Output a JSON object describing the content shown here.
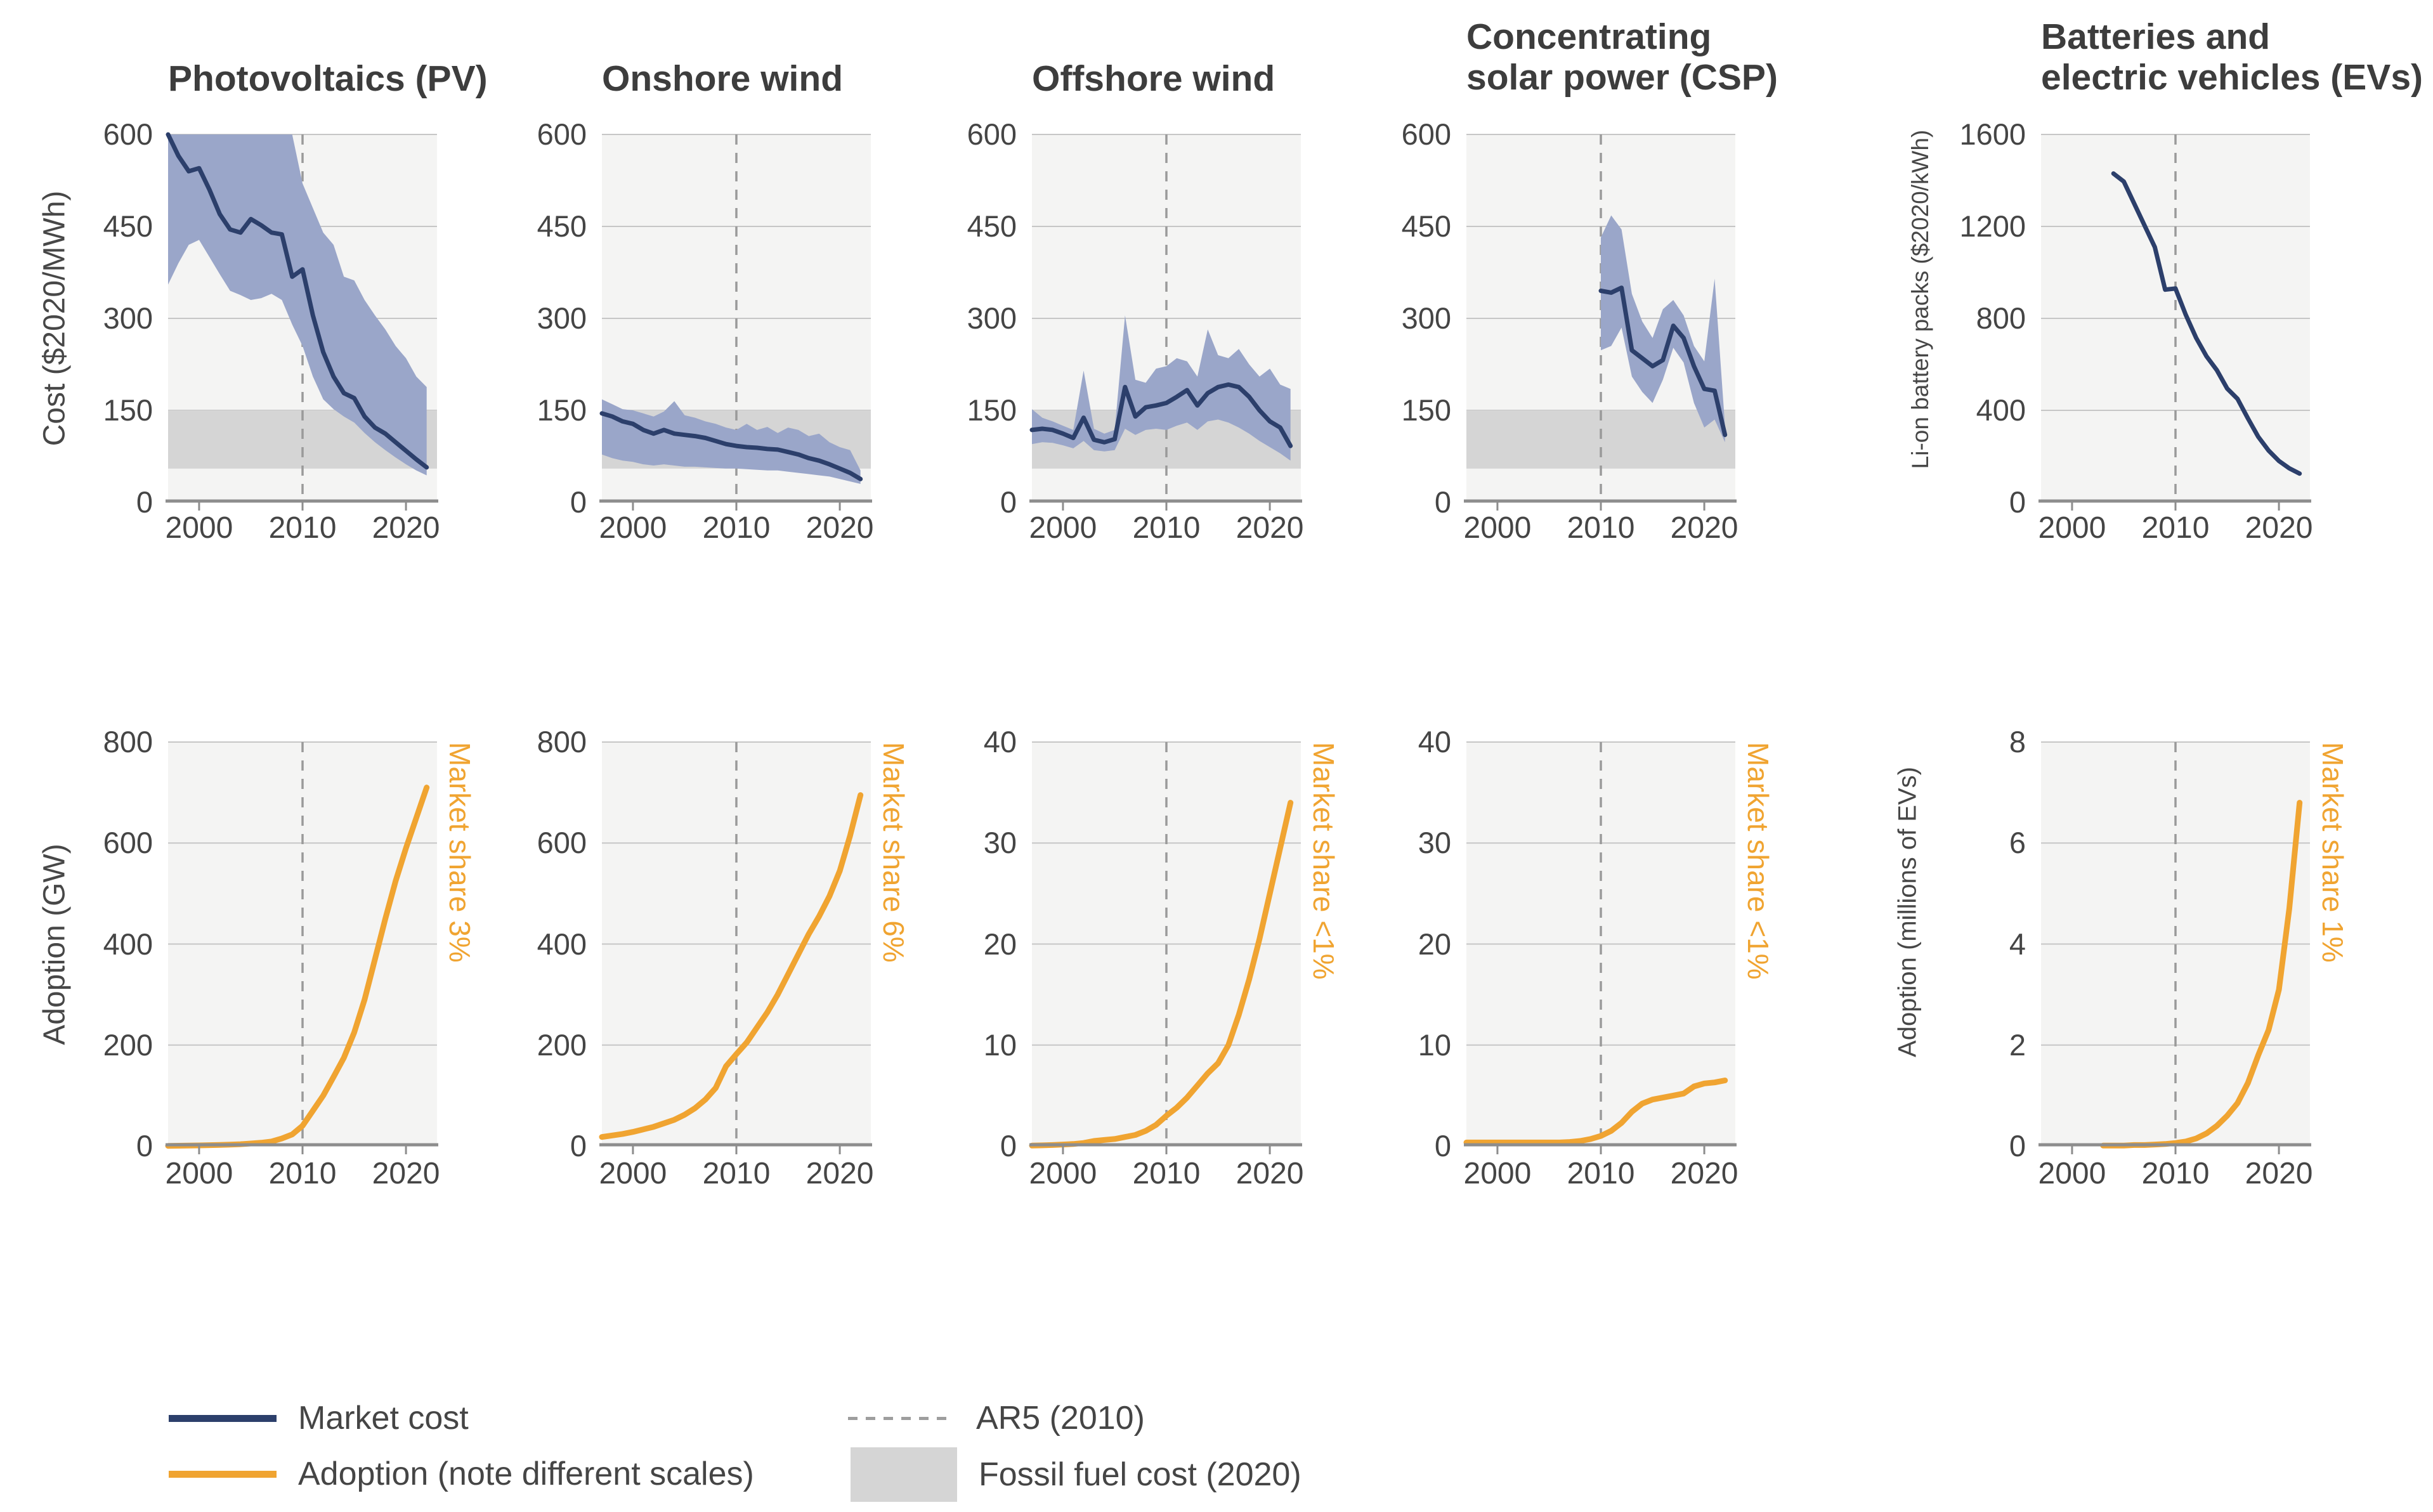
{
  "colors": {
    "line": "#2c3f6b",
    "orange": "#f0a431",
    "band": "#9aa6c9",
    "fossil_band": "#d5d5d5",
    "plot_bg": "#f4f4f3",
    "grid": "#c6c6c6",
    "dashed": "#9a9a9a",
    "axis": "#8d8d8d",
    "text": "#3d3d3d"
  },
  "axis_labels": {
    "cost": "Cost ($2020/MWh)",
    "battery": "Li-on battery packs ($2020/kWh)",
    "adoption_gw": "Adoption (GW)",
    "adoption_ev": "Adoption (millions of EVs)"
  },
  "legend": {
    "market_cost": "Market cost",
    "adoption": "Adoption (note different scales)",
    "ar5": "AR5 (2010)",
    "fossil": "Fossil fuel cost (2020)"
  },
  "x_ticks": [
    2000,
    2010,
    2020
  ],
  "x_range": [
    1997,
    2023
  ],
  "ar5_year": 2010,
  "chart_data": [
    {
      "id": "pv-cost",
      "type": "line",
      "row": "cost",
      "col": 0,
      "title": "Photovoltaics (PV)",
      "ylabel_key": "cost",
      "ylim": [
        0,
        600
      ],
      "yticks": [
        0,
        150,
        300,
        450,
        600
      ],
      "fossil_band": [
        55,
        150
      ],
      "series": [
        {
          "name": "Market cost",
          "start_year": 1997,
          "values": [
            600,
            565,
            540,
            545,
            510,
            470,
            445,
            440,
            462,
            452,
            440,
            437,
            368,
            380,
            305,
            245,
            205,
            178,
            170,
            140,
            122,
            112,
            98,
            84,
            70,
            57
          ]
        }
      ],
      "band": {
        "start_year": 1997,
        "upper": [
          600,
          600,
          600,
          600,
          600,
          600,
          600,
          600,
          600,
          600,
          600,
          600,
          600,
          520,
          480,
          440,
          420,
          368,
          362,
          330,
          305,
          282,
          255,
          235,
          205,
          188
        ],
        "lower": [
          355,
          390,
          420,
          428,
          400,
          372,
          345,
          338,
          330,
          333,
          340,
          330,
          290,
          255,
          205,
          168,
          152,
          140,
          130,
          113,
          98,
          85,
          73,
          62,
          52,
          44
        ]
      }
    },
    {
      "id": "onshore-cost",
      "type": "line",
      "row": "cost",
      "col": 1,
      "title": "Onshore wind",
      "ylabel_key": "cost",
      "ylim": [
        0,
        600
      ],
      "yticks": [
        0,
        150,
        300,
        450,
        600
      ],
      "fossil_band": [
        55,
        150
      ],
      "series": [
        {
          "name": "Market cost",
          "start_year": 1997,
          "values": [
            145,
            140,
            132,
            128,
            118,
            112,
            118,
            112,
            110,
            108,
            105,
            100,
            95,
            92,
            90,
            89,
            87,
            86,
            82,
            78,
            72,
            68,
            62,
            55,
            48,
            38
          ]
        }
      ],
      "band": {
        "start_year": 1997,
        "upper": [
          168,
          160,
          152,
          150,
          145,
          140,
          148,
          165,
          142,
          138,
          132,
          128,
          122,
          118,
          128,
          118,
          123,
          113,
          122,
          118,
          108,
          112,
          98,
          90,
          85,
          52
        ],
        "lower": [
          78,
          72,
          68,
          66,
          62,
          60,
          62,
          60,
          58,
          58,
          57,
          56,
          55,
          55,
          54,
          53,
          52,
          52,
          50,
          48,
          46,
          44,
          42,
          38,
          34,
          30
        ]
      }
    },
    {
      "id": "offshore-cost",
      "type": "line",
      "row": "cost",
      "col": 2,
      "title": "Offshore wind",
      "ylabel_key": "cost",
      "ylim": [
        0,
        600
      ],
      "yticks": [
        0,
        150,
        300,
        450,
        600
      ],
      "fossil_band": [
        55,
        150
      ],
      "series": [
        {
          "name": "Market cost",
          "start_year": 1997,
          "values": [
            118,
            120,
            118,
            112,
            105,
            138,
            102,
            98,
            103,
            188,
            140,
            155,
            158,
            162,
            172,
            183,
            158,
            178,
            188,
            192,
            188,
            172,
            150,
            132,
            122,
            92
          ]
        }
      ],
      "band": {
        "start_year": 1997,
        "upper": [
          152,
          138,
          132,
          125,
          118,
          215,
          120,
          112,
          118,
          305,
          200,
          195,
          218,
          222,
          235,
          230,
          205,
          282,
          240,
          235,
          250,
          225,
          205,
          218,
          192,
          185
        ],
        "lower": [
          95,
          98,
          97,
          93,
          88,
          100,
          85,
          83,
          85,
          120,
          110,
          118,
          120,
          118,
          125,
          130,
          118,
          132,
          135,
          130,
          122,
          112,
          100,
          90,
          80,
          68
        ]
      }
    },
    {
      "id": "csp-cost",
      "type": "line",
      "row": "cost",
      "col": 3,
      "title": "Concentrating\nsolar power (CSP)",
      "ylabel_key": "cost",
      "ylim": [
        0,
        600
      ],
      "yticks": [
        0,
        150,
        300,
        450,
        600
      ],
      "fossil_band": [
        55,
        150
      ],
      "series": [
        {
          "name": "Market cost",
          "start_year": 2010,
          "values": [
            345,
            342,
            350,
            248,
            235,
            222,
            232,
            288,
            268,
            222,
            185,
            182,
            110
          ]
        }
      ],
      "band": {
        "start_year": 2010,
        "upper": [
          432,
          468,
          445,
          340,
          295,
          268,
          315,
          330,
          305,
          255,
          230,
          365,
          125
        ],
        "lower": [
          248,
          255,
          285,
          205,
          180,
          162,
          200,
          252,
          228,
          162,
          122,
          135,
          98
        ]
      }
    },
    {
      "id": "battery-cost",
      "type": "line",
      "row": "cost",
      "col": 4,
      "title": "Batteries and\nelectric vehicles (EVs)",
      "ylabel_key": "battery",
      "ylim": [
        0,
        1600
      ],
      "yticks": [
        0,
        400,
        800,
        1200,
        1600
      ],
      "fossil_band": null,
      "series": [
        {
          "name": "Market cost",
          "start_year": 2004,
          "values": [
            1430,
            1395,
            1300,
            1205,
            1110,
            925,
            930,
            815,
            715,
            635,
            575,
            495,
            450,
            365,
            285,
            225,
            180,
            148,
            125
          ]
        }
      ],
      "band": null
    },
    {
      "id": "pv-adoption",
      "type": "line",
      "row": "adoption",
      "col": 0,
      "ylabel_key": "adoption_gw",
      "share_label": "Market share 3%",
      "ylim": [
        0,
        800
      ],
      "yticks": [
        0,
        200,
        400,
        600,
        800
      ],
      "fossil_band": null,
      "series": [
        {
          "name": "Adoption",
          "start_year": 1997,
          "values": [
            0.4,
            0.6,
            0.9,
            1.3,
            1.7,
            2.2,
            2.8,
            3.7,
            5,
            6.5,
            9,
            15,
            23,
            40,
            70,
            100,
            137,
            175,
            225,
            290,
            370,
            450,
            525,
            590,
            650,
            710
          ]
        }
      ],
      "band": null
    },
    {
      "id": "onshore-adoption",
      "type": "line",
      "row": "adoption",
      "col": 1,
      "ylabel_key": "adoption_gw",
      "share_label": "Market share 6%",
      "ylim": [
        0,
        800
      ],
      "yticks": [
        0,
        200,
        400,
        600,
        800
      ],
      "fossil_band": null,
      "series": [
        {
          "name": "Adoption",
          "start_year": 1997,
          "values": [
            18,
            21,
            24,
            28,
            33,
            38,
            45,
            52,
            62,
            75,
            92,
            115,
            158,
            182,
            205,
            235,
            265,
            300,
            340,
            380,
            420,
            455,
            495,
            545,
            615,
            695
          ]
        }
      ],
      "band": null
    },
    {
      "id": "offshore-adoption",
      "type": "line",
      "row": "adoption",
      "col": 2,
      "ylabel_key": "adoption_gw",
      "share_label": "Market share <1%",
      "ylim": [
        0,
        40
      ],
      "yticks": [
        0,
        10,
        20,
        30,
        40
      ],
      "fossil_band": null,
      "series": [
        {
          "name": "Adoption",
          "start_year": 1997,
          "values": [
            0.05,
            0.07,
            0.1,
            0.15,
            0.2,
            0.3,
            0.5,
            0.6,
            0.7,
            0.9,
            1.1,
            1.5,
            2.1,
            3,
            3.8,
            4.8,
            6,
            7.2,
            8.2,
            10,
            13,
            16.5,
            20.5,
            25,
            29.5,
            34
          ]
        }
      ],
      "band": null
    },
    {
      "id": "csp-adoption",
      "type": "line",
      "row": "adoption",
      "col": 3,
      "ylabel_key": "adoption_gw",
      "share_label": "Market share <1%",
      "ylim": [
        0,
        40
      ],
      "yticks": [
        0,
        10,
        20,
        30,
        40
      ],
      "fossil_band": null,
      "series": [
        {
          "name": "Adoption",
          "start_year": 1997,
          "values": [
            0.35,
            0.35,
            0.35,
            0.35,
            0.35,
            0.35,
            0.35,
            0.35,
            0.35,
            0.35,
            0.4,
            0.5,
            0.7,
            1,
            1.5,
            2.3,
            3.4,
            4.2,
            4.6,
            4.8,
            5,
            5.2,
            5.9,
            6.2,
            6.3,
            6.5
          ]
        }
      ],
      "band": null
    },
    {
      "id": "ev-adoption",
      "type": "line",
      "row": "adoption",
      "col": 4,
      "ylabel_key": "adoption_ev",
      "share_label": "Market share 1%",
      "ylim": [
        0,
        8
      ],
      "yticks": [
        0,
        2,
        4,
        6,
        8
      ],
      "fossil_band": null,
      "series": [
        {
          "name": "Adoption",
          "start_year": 2003,
          "values": [
            0.01,
            0.01,
            0.01,
            0.02,
            0.02,
            0.03,
            0.04,
            0.06,
            0.09,
            0.15,
            0.25,
            0.4,
            0.6,
            0.85,
            1.25,
            1.8,
            2.3,
            3.1,
            4.7,
            6.8
          ]
        }
      ],
      "band": null
    }
  ]
}
